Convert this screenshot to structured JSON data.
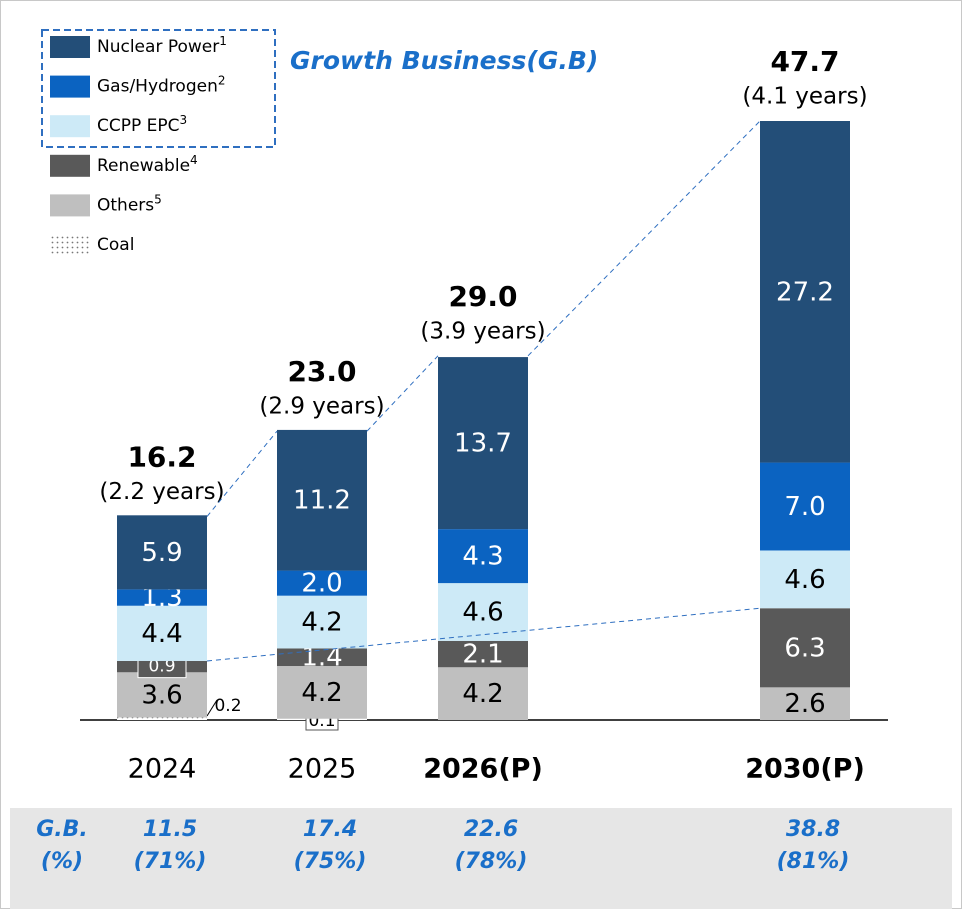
{
  "chart_data": {
    "type": "bar",
    "stacked": true,
    "annotation": "Growth Business(G.B)",
    "categories": [
      "2024",
      "2025",
      "2026(P)",
      "2030(P)"
    ],
    "projected": [
      false,
      false,
      true,
      true
    ],
    "series": [
      {
        "name": "Coal",
        "footnote": null,
        "color": "#ffffff",
        "pattern": "dots",
        "values": [
          0.2,
          0.1,
          null,
          null
        ]
      },
      {
        "name": "Others",
        "footnote": "5",
        "color": "#bfbfbf",
        "values": [
          3.6,
          4.2,
          4.2,
          2.6
        ]
      },
      {
        "name": "Renewable",
        "footnote": "4",
        "color": "#595959",
        "values": [
          0.9,
          1.4,
          2.1,
          6.3
        ]
      },
      {
        "name": "CCPP EPC",
        "footnote": "3",
        "color": "#cdeaf7",
        "growth_business": true,
        "values": [
          4.4,
          4.2,
          4.6,
          4.6
        ]
      },
      {
        "name": "Gas/Hydrogen",
        "footnote": "2",
        "color": "#0b63c1",
        "growth_business": true,
        "values": [
          1.3,
          2.0,
          4.3,
          7.0
        ],
        "value_labels": [
          "1.3",
          "2.0",
          "4.3",
          "7.0"
        ]
      },
      {
        "name": "Nuclear Power",
        "footnote": "1",
        "color": "#234e78",
        "growth_business": true,
        "values": [
          5.9,
          11.2,
          13.7,
          27.2
        ]
      }
    ],
    "totals": [
      16.2,
      23.0,
      29.0,
      47.7
    ],
    "total_labels": [
      "16.2",
      "23.0",
      "29.0",
      "47.7"
    ],
    "years": [
      2.2,
      2.9,
      3.9,
      4.1
    ],
    "year_labels": [
      "(2.2 years)",
      "(2.9 years)",
      "(3.9 years)",
      "(4.1 years)"
    ],
    "growth_business_row": {
      "label_lines": [
        "G.B.",
        "(%)"
      ],
      "values": [
        11.5,
        17.4,
        22.6,
        38.8
      ],
      "shares": [
        71,
        75,
        78,
        81
      ],
      "share_labels": [
        "(71%)",
        "(75%)",
        "(78%)",
        "(81%)"
      ]
    }
  }
}
